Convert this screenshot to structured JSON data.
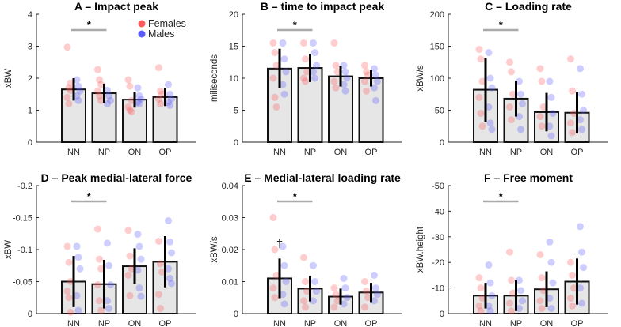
{
  "legend": {
    "females": "Females",
    "males": "Males",
    "female_color": "#ff5a5a",
    "male_color": "#5a5aff"
  },
  "chart_data": [
    {
      "type": "bar",
      "title": "A – Impact peak",
      "ylabel": "xBW",
      "categories": [
        "NN",
        "NP",
        "ON",
        "OP"
      ],
      "ylim": [
        0,
        4
      ],
      "yticks": [
        0,
        1,
        2,
        3,
        4
      ],
      "ytick_labels": [
        "0",
        "1",
        "2",
        "3",
        "4"
      ],
      "means": [
        1.65,
        1.53,
        1.33,
        1.41
      ],
      "errors": [
        0.35,
        0.3,
        0.25,
        0.28
      ],
      "significance": {
        "pair": [
          "NN",
          "NP"
        ],
        "label": "*"
      },
      "females": [
        [
          2.97,
          1.7,
          1.62,
          1.4,
          1.2,
          1.85
        ],
        [
          2.27,
          1.95,
          1.8,
          1.6,
          1.45,
          1.3
        ],
        [
          1.95,
          1.75,
          1.3,
          1.1,
          1.0,
          0.95
        ],
        [
          2.33,
          1.6,
          1.5,
          1.35,
          1.2
        ]
      ],
      "males": [
        [
          1.95,
          1.75,
          1.6,
          1.45,
          1.3
        ],
        [
          1.62,
          1.45,
          1.3,
          1.2
        ],
        [
          1.7,
          1.45,
          1.35,
          1.25,
          1.2
        ],
        [
          1.8,
          1.5,
          1.35,
          1.25,
          1.15
        ]
      ]
    },
    {
      "type": "bar",
      "title": "B – time to impact peak",
      "ylabel": "miliseconds",
      "categories": [
        "NN",
        "NP",
        "ON",
        "OP"
      ],
      "ylim": [
        0,
        20
      ],
      "yticks": [
        0,
        5,
        10,
        15,
        20
      ],
      "ytick_labels": [
        "0",
        "5",
        "10",
        "15",
        "20"
      ],
      "means": [
        11.5,
        11.6,
        10.3,
        10.0
      ],
      "errors": [
        3.1,
        2.2,
        1.6,
        1.3
      ],
      "significance": {
        "pair": [
          "NN",
          "NP"
        ],
        "label": "*"
      },
      "females": [
        [
          15.5,
          14,
          12,
          10,
          7,
          5.5
        ],
        [
          15.5,
          13,
          11,
          10,
          9.5
        ],
        [
          15.5,
          12,
          11,
          9.5,
          8.5
        ],
        [
          12,
          11,
          10.5,
          9.5,
          8
        ]
      ],
      "males": [
        [
          15.5,
          13,
          11,
          9,
          7.5
        ],
        [
          15.5,
          14,
          12,
          11,
          10
        ],
        [
          12,
          11,
          10,
          9,
          8
        ],
        [
          11.5,
          10.5,
          9.5,
          8.5,
          6.5
        ]
      ]
    },
    {
      "type": "bar",
      "title": "C – Loading rate",
      "ylabel": "xBW/s",
      "categories": [
        "NN",
        "NP",
        "ON",
        "OP"
      ],
      "ylim": [
        0,
        200
      ],
      "yticks": [
        0,
        50,
        100,
        150,
        200
      ],
      "ytick_labels": [
        "0",
        "50",
        "100",
        "150",
        "200"
      ],
      "means": [
        82,
        68,
        47,
        46
      ],
      "errors": [
        50,
        28,
        30,
        32
      ],
      "significance": {
        "pair": [
          "NN",
          "NP"
        ],
        "label": "*"
      },
      "females": [
        [
          145,
          130,
          95,
          70,
          45,
          25
        ],
        [
          125,
          110,
          75,
          55,
          35
        ],
        [
          115,
          95,
          55,
          40,
          25
        ],
        [
          130,
          80,
          45,
          30,
          15
        ]
      ],
      "males": [
        [
          140,
          100,
          85,
          55,
          30,
          20
        ],
        [
          95,
          75,
          60,
          40,
          20
        ],
        [
          95,
          70,
          45,
          25,
          10
        ],
        [
          115,
          75,
          50,
          35,
          20
        ]
      ]
    },
    {
      "type": "bar",
      "title": "D – Peak medial-lateral force",
      "ylabel": "xBW",
      "categories": [
        "NN",
        "NP",
        "ON",
        "OP"
      ],
      "ylim": [
        0,
        -0.2
      ],
      "yticks": [
        0,
        -0.05,
        -0.1,
        -0.15,
        -0.2
      ],
      "ytick_labels": [
        "0",
        "-0.05",
        "-0.1",
        "-0.15",
        "-0.2"
      ],
      "means": [
        -0.05,
        -0.046,
        -0.074,
        -0.081
      ],
      "errors": [
        0.04,
        0.038,
        0.028,
        0.04
      ],
      "significance": {
        "pair": [
          "NN",
          "NP"
        ],
        "label": "*"
      },
      "females": [
        [
          -0.105,
          -0.08,
          -0.05,
          -0.035,
          -0.025,
          -0.002
        ],
        [
          -0.132,
          -0.085,
          -0.07,
          -0.045,
          -0.02,
          -0.005
        ],
        [
          -0.13,
          -0.09,
          -0.07,
          -0.06,
          -0.028
        ],
        [
          -0.113,
          -0.078,
          -0.065,
          -0.03,
          -0.008
        ]
      ],
      "males": [
        [
          -0.105,
          -0.088,
          -0.07,
          -0.028,
          -0.005
        ],
        [
          -0.11,
          -0.075,
          -0.045,
          -0.02,
          -0.008
        ],
        [
          -0.124,
          -0.105,
          -0.085,
          -0.068,
          -0.04,
          -0.027
        ],
        [
          -0.145,
          -0.112,
          -0.095,
          -0.07,
          -0.055,
          -0.047
        ]
      ]
    },
    {
      "type": "bar",
      "title": "E – Medial-lateral loading rate",
      "ylabel": "xBW/s",
      "categories": [
        "NN",
        "NP",
        "ON",
        "OP"
      ],
      "ylim": [
        0,
        0.04
      ],
      "yticks": [
        0,
        0.01,
        0.02,
        0.03,
        0.04
      ],
      "ytick_labels": [
        "0",
        "0.01",
        "0.02",
        "0.03",
        "0.04"
      ],
      "means": [
        0.011,
        0.0078,
        0.0053,
        0.0066
      ],
      "errors": [
        0.0062,
        0.004,
        0.0025,
        0.003
      ],
      "significance": {
        "pair": [
          "NN",
          "NP"
        ],
        "label": "*"
      },
      "annotation": {
        "category": "NN",
        "label": "†"
      },
      "females": [
        [
          0.03,
          0.02,
          0.012,
          0.008,
          0.005
        ],
        [
          0.0175,
          0.01,
          0.007,
          0.004,
          0.002
        ],
        [
          0.008,
          0.006,
          0.004,
          0.002
        ],
        [
          0.01,
          0.007,
          0.005,
          0.002
        ]
      ],
      "males": [
        [
          0.021,
          0.015,
          0.01,
          0.006,
          0.003
        ],
        [
          0.015,
          0.01,
          0.007,
          0.004
        ],
        [
          0.011,
          0.008,
          0.005,
          0.003
        ],
        [
          0.012,
          0.008,
          0.006,
          0.004
        ]
      ]
    },
    {
      "type": "bar",
      "title": "F – Free moment",
      "ylabel": "xBW.height",
      "categories": [
        "NN",
        "NP",
        "ON",
        "OP"
      ],
      "ylim": [
        0,
        -50
      ],
      "yticks": [
        0,
        -10,
        -20,
        -30,
        -40,
        -50
      ],
      "ytick_labels": [
        "0",
        "-10",
        "-20",
        "-30",
        "-40",
        "-50"
      ],
      "means": [
        -7,
        -7,
        -9.5,
        -12.5
      ],
      "errors": [
        5,
        6,
        7,
        9
      ],
      "significance": {
        "pair": [
          "NN",
          "NP"
        ],
        "label": "*"
      },
      "females": [
        [
          -14,
          -10,
          -6,
          -3,
          -1
        ],
        [
          -24,
          -13,
          -8,
          -4,
          -1
        ],
        [
          -23,
          -14,
          -9,
          -5,
          -2
        ],
        [
          -20,
          -15,
          -10,
          -6,
          -3
        ]
      ],
      "males": [
        [
          -19,
          -12,
          -7,
          -3,
          -1
        ],
        [
          -13,
          -9,
          -5,
          -2
        ],
        [
          -28,
          -20,
          -12,
          -6,
          -2
        ],
        [
          -34,
          -24,
          -18,
          -10,
          -4
        ]
      ]
    }
  ]
}
